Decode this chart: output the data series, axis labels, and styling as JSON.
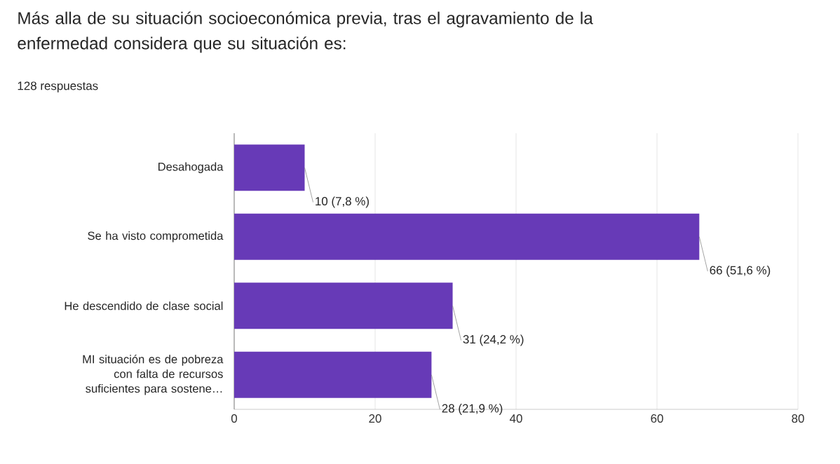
{
  "chart_data": {
    "type": "bar",
    "orientation": "horizontal",
    "title": "Más alla de su situación socioeconómica previa, tras el agravamiento de la enfermedad considera que su situación es:",
    "subtitle": "128 respuestas",
    "categories": [
      "Desahogada",
      "Se ha visto comprometida",
      "He descendido de clase social",
      "MI situación es de pobreza con falta de recursos suficientes para sostene…"
    ],
    "values": [
      10,
      66,
      31,
      28
    ],
    "value_labels": [
      "10 (7,8 %)",
      "66 (51,6 %)",
      "31 (24,2 %)",
      "28 (21,9 %)"
    ],
    "color": "#673ab7",
    "xlim": [
      0,
      80
    ],
    "xticks": [
      0,
      20,
      40,
      60,
      80
    ],
    "grid": "x"
  }
}
